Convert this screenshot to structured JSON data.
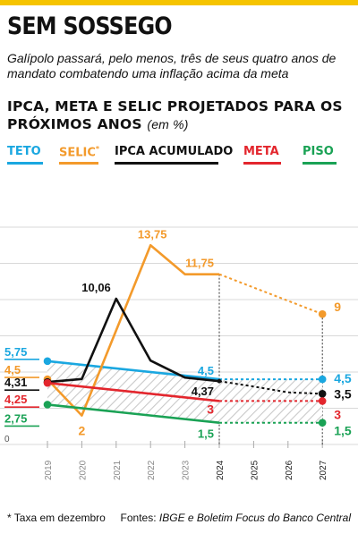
{
  "header": {
    "title": "SEM SOSSEGO",
    "subtitle": "Galípolo passará, pelo menos, três de seus quatro anos de mandato combatendo uma inflação acima da meta"
  },
  "chart_title": {
    "main": "IPCA, META E SELIC PROJETADOS PARA OS PRÓXIMOS ANOS",
    "unit": "(em %)"
  },
  "footer": {
    "footnote": "* Taxa em dezembro",
    "source_prefix": "Fontes: ",
    "source_text": "IBGE e Boletim Focus do Banco Central"
  },
  "colors": {
    "teto": "#1aa7e0",
    "selic": "#f39a2b",
    "ipca": "#111111",
    "meta": "#e3262d",
    "piso": "#1aa255",
    "accent": "#f6c400"
  },
  "legend": [
    {
      "label": "TETO",
      "marker": ""
    },
    {
      "label": "SELIC",
      "marker": "*"
    },
    {
      "label": "IPCA ACUMULADO",
      "marker": ""
    },
    {
      "label": "META",
      "marker": ""
    },
    {
      "label": "PISO",
      "marker": ""
    }
  ],
  "chart_data": {
    "type": "line",
    "x": [
      "2019",
      "2020",
      "2021",
      "2022",
      "2023",
      "2024",
      "2025",
      "2026",
      "2027"
    ],
    "ylim": [
      0,
      15
    ],
    "projection_from": "2024",
    "series": [
      {
        "name": "TETO",
        "values": [
          5.75,
          null,
          null,
          null,
          null,
          4.5,
          4.5,
          4.5,
          4.5
        ],
        "labels": {
          "2019": "5,75",
          "2024": "4,5",
          "2027": "4,5"
        }
      },
      {
        "name": "SELIC",
        "values": [
          4.5,
          2,
          null,
          13.75,
          11.75,
          11.75,
          null,
          null,
          9
        ],
        "labels": {
          "2019": "4,5",
          "2020": "2",
          "2022": "13,75",
          "2024": "11,75",
          "2027": "9"
        }
      },
      {
        "name": "IPCA ACUMULADO",
        "values": [
          4.31,
          4.52,
          10.06,
          5.79,
          4.62,
          4.37,
          4.0,
          3.6,
          3.5
        ],
        "labels": {
          "2019": "4,31",
          "2021": "10,06",
          "2024": "4,37",
          "2027": "3,5"
        }
      },
      {
        "name": "META",
        "values": [
          4.25,
          null,
          null,
          null,
          null,
          3,
          3,
          3,
          3
        ],
        "labels": {
          "2019": "4,25",
          "2024": "3",
          "2027": "3"
        }
      },
      {
        "name": "PISO",
        "values": [
          2.75,
          null,
          null,
          null,
          null,
          1.5,
          1.5,
          1.5,
          1.5
        ],
        "labels": {
          "2019": "2,75",
          "2024": "1,5",
          "2027": "1,5"
        }
      }
    ],
    "y_tick_labels": [
      "0"
    ]
  }
}
